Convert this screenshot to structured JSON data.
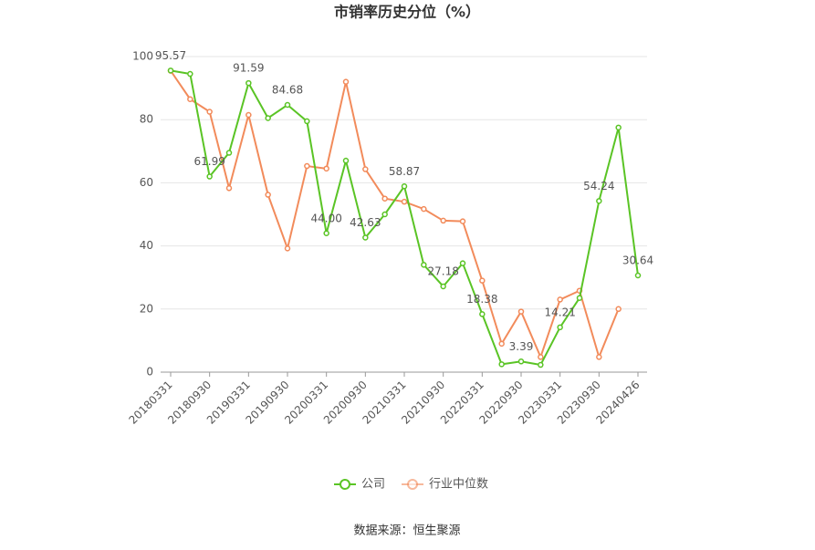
{
  "chart_data": {
    "type": "line",
    "title": "市销率历史分位（%）",
    "categories": [
      "20180331",
      null,
      "20180930",
      null,
      "20190331",
      null,
      "20190930",
      null,
      "20200331",
      null,
      "20200930",
      null,
      "20210331",
      null,
      "20210930",
      null,
      "20220331",
      null,
      "20220930",
      null,
      "20230331",
      null,
      "20230930",
      null,
      "20240426"
    ],
    "series": [
      {
        "name": "公司",
        "color": "#5ac425",
        "values": [
          95.57,
          94.5,
          61.99,
          69.5,
          91.59,
          80.5,
          84.68,
          79.5,
          44.0,
          67.0,
          42.63,
          50.0,
          58.87,
          34.0,
          27.18,
          34.5,
          18.38,
          2.5,
          3.39,
          2.3,
          14.21,
          23.5,
          54.24,
          77.5,
          30.64
        ],
        "value_labels": [
          "95.57",
          null,
          "61.99",
          null,
          "91.59",
          null,
          "84.68",
          null,
          "44.00",
          null,
          "42.63",
          null,
          "58.87",
          null,
          "27.18",
          null,
          "18.38",
          null,
          "3.39",
          null,
          "14.21",
          null,
          "54.24",
          null,
          "30.64"
        ]
      },
      {
        "name": "行业中位数",
        "color": "#f28b5b",
        "values": [
          95.5,
          86.5,
          82.5,
          58.3,
          81.5,
          56.2,
          39.2,
          65.3,
          64.5,
          92.0,
          64.3,
          55.0,
          54.0,
          51.7,
          48.0,
          47.8,
          29.0,
          9.0,
          19.2,
          4.8,
          23.0,
          25.8,
          4.8,
          20.0,
          null
        ]
      }
    ],
    "ylim": [
      0,
      100
    ],
    "yticks": [
      0,
      20,
      40,
      60,
      80,
      100
    ],
    "grid": true,
    "source": "数据来源：恒生聚源"
  }
}
